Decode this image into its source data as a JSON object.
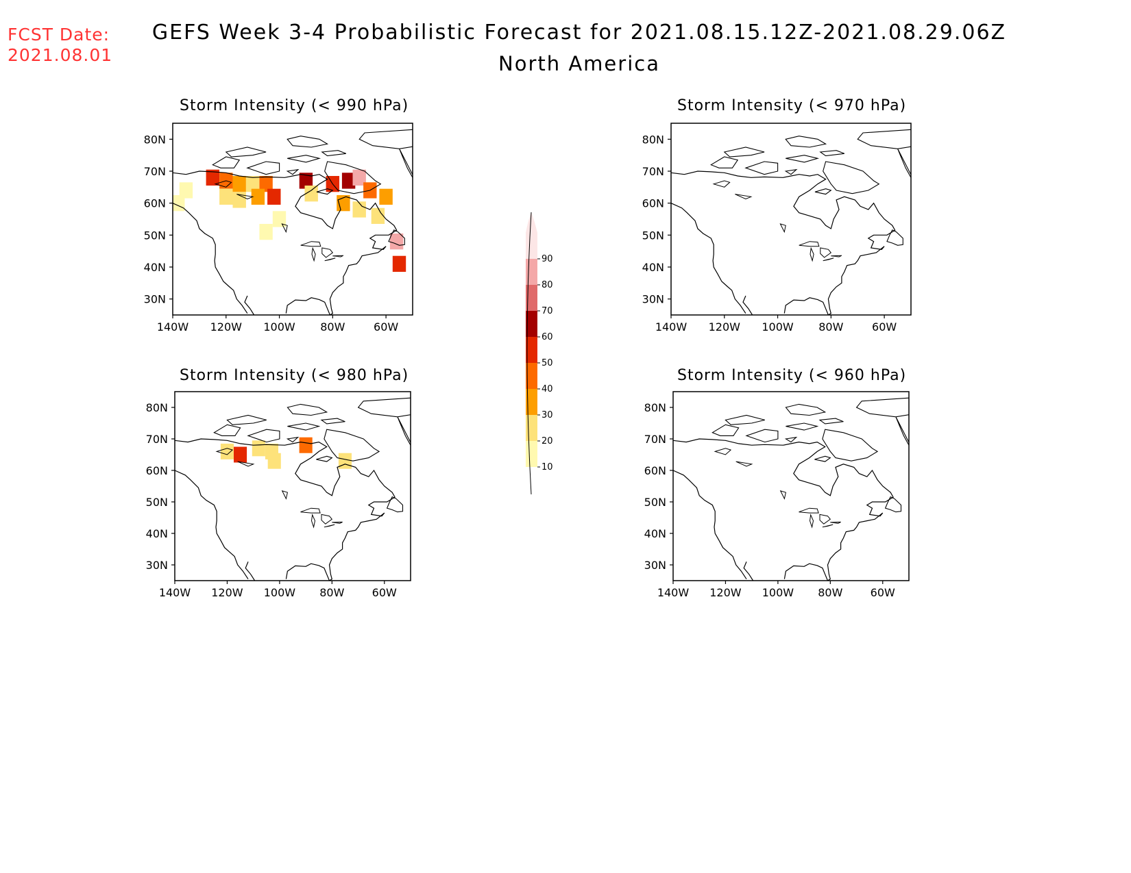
{
  "header": {
    "fcst_label": "FCST Date:",
    "fcst_date": "2021.08.01",
    "title": "GEFS Week 3-4 Probabilistic Forecast for 2021.08.15.12Z-2021.08.29.06Z",
    "subtitle": "North America"
  },
  "panels": [
    {
      "id": "p990",
      "title": "Storm Intensity (< 990 hPa)",
      "lat_labels": [
        "80N",
        "70N",
        "60N",
        "50N",
        "40N",
        "30N"
      ],
      "lon_labels": [
        "140W",
        "120W",
        "100W",
        "80W",
        "60W"
      ]
    },
    {
      "id": "p970",
      "title": "Storm Intensity (< 970 hPa)",
      "lat_labels": [
        "80N",
        "70N",
        "60N",
        "50N",
        "40N",
        "30N"
      ],
      "lon_labels": [
        "140W",
        "120W",
        "100W",
        "80W",
        "60W"
      ]
    },
    {
      "id": "p980",
      "title": "Storm Intensity (< 980 hPa)",
      "lat_labels": [
        "80N",
        "70N",
        "60N",
        "50N",
        "40N",
        "30N"
      ],
      "lon_labels": [
        "140W",
        "120W",
        "100W",
        "80W",
        "60W"
      ]
    },
    {
      "id": "p960",
      "title": "Storm Intensity (< 960 hPa)",
      "lat_labels": [
        "80N",
        "70N",
        "60N",
        "50N",
        "40N",
        "30N"
      ],
      "lon_labels": [
        "140W",
        "120W",
        "100W",
        "80W",
        "60W"
      ]
    }
  ],
  "map_extent": {
    "lon_min": -140,
    "lon_max": -50,
    "lat_min": 25,
    "lat_max": 85
  },
  "colorbar": {
    "levels": [
      "10",
      "20",
      "30",
      "40",
      "50",
      "60",
      "70",
      "80",
      "90"
    ],
    "colors": [
      "#fff9b0",
      "#fde27a",
      "#fd9e00",
      "#fd6a00",
      "#e42800",
      "#a30000",
      "#e06a6a",
      "#f4a8a8",
      "#fce6e6"
    ]
  },
  "probability_fields": {
    "p990": [
      {
        "lon": -125,
        "lat": 68,
        "value": 50
      },
      {
        "lon": -120,
        "lat": 67,
        "value": 40
      },
      {
        "lon": -115,
        "lat": 66,
        "value": 30
      },
      {
        "lon": -110,
        "lat": 66,
        "value": 20
      },
      {
        "lon": -105,
        "lat": 66,
        "value": 40
      },
      {
        "lon": -102,
        "lat": 62,
        "value": 50
      },
      {
        "lon": -108,
        "lat": 62,
        "value": 30
      },
      {
        "lon": -115,
        "lat": 61,
        "value": 20
      },
      {
        "lon": -120,
        "lat": 62,
        "value": 20
      },
      {
        "lon": -90,
        "lat": 67,
        "value": 60
      },
      {
        "lon": -88,
        "lat": 63,
        "value": 20
      },
      {
        "lon": -80,
        "lat": 66,
        "value": 50
      },
      {
        "lon": -74,
        "lat": 67,
        "value": 60
      },
      {
        "lon": -70,
        "lat": 68,
        "value": 80
      },
      {
        "lon": -66,
        "lat": 64,
        "value": 40
      },
      {
        "lon": -60,
        "lat": 62,
        "value": 30
      },
      {
        "lon": -76,
        "lat": 60,
        "value": 30
      },
      {
        "lon": -70,
        "lat": 58,
        "value": 20
      },
      {
        "lon": -63,
        "lat": 56,
        "value": 20
      },
      {
        "lon": -100,
        "lat": 55,
        "value": 10
      },
      {
        "lon": -105,
        "lat": 51,
        "value": 10
      },
      {
        "lon": -56,
        "lat": 48,
        "value": 80
      },
      {
        "lon": -55,
        "lat": 41,
        "value": 50
      },
      {
        "lon": -138,
        "lat": 60,
        "value": 10
      },
      {
        "lon": -135,
        "lat": 64,
        "value": 10
      }
    ],
    "p980": [
      {
        "lon": -120,
        "lat": 66,
        "value": 20
      },
      {
        "lon": -115,
        "lat": 65,
        "value": 50
      },
      {
        "lon": -108,
        "lat": 67,
        "value": 20
      },
      {
        "lon": -103,
        "lat": 66,
        "value": 20
      },
      {
        "lon": -102,
        "lat": 63,
        "value": 20
      },
      {
        "lon": -90,
        "lat": 68,
        "value": 40
      },
      {
        "lon": -75,
        "lat": 63,
        "value": 20
      }
    ],
    "p970": [],
    "p960": []
  }
}
